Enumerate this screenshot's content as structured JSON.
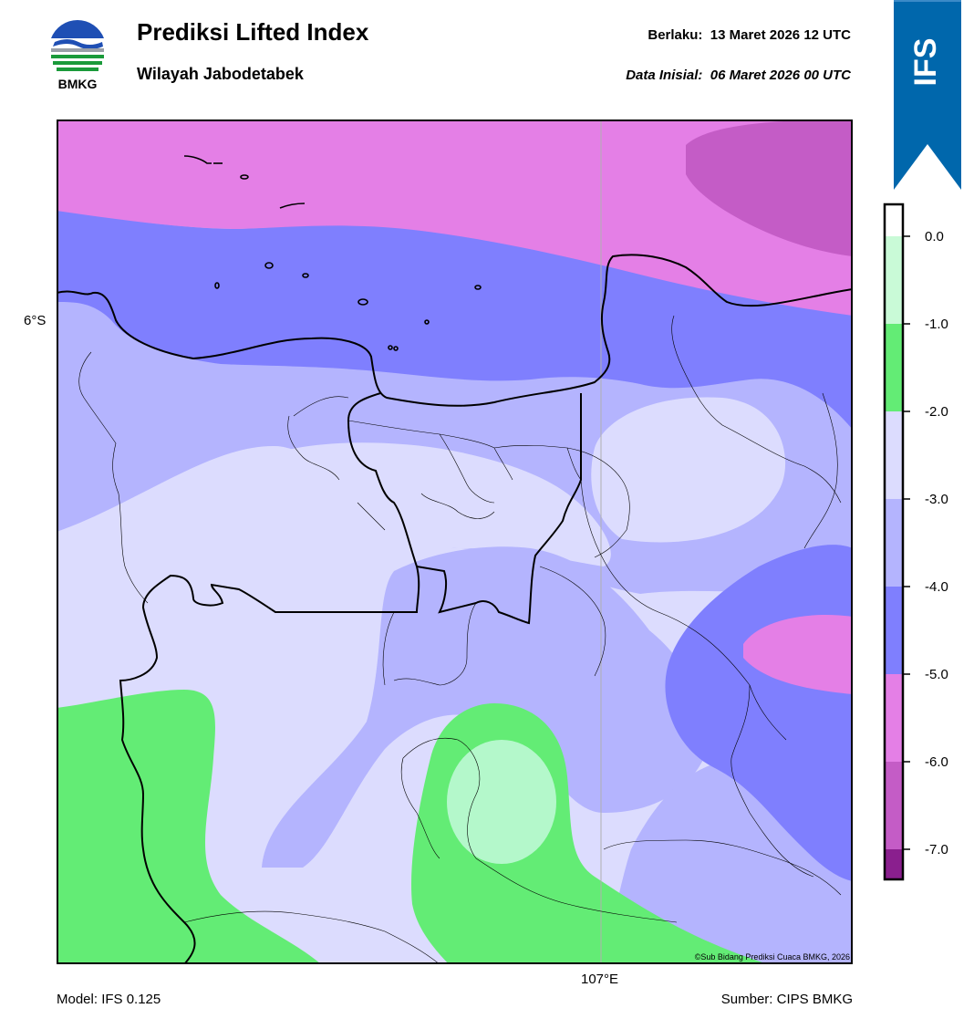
{
  "header": {
    "agency_logo_text": "BMKG",
    "title": "Prediksi Lifted Index",
    "subtitle": "Wilayah Jabodetabek",
    "valid_label": "Berlaku:",
    "valid_time": "13 Maret 2026 12 UTC",
    "init_label": "Data Inisial:",
    "init_time": "06 Maret 2026 00 UTC",
    "model_badge": "IFS"
  },
  "map": {
    "lat_label": "6°S",
    "lon_label": "107°E",
    "copyright": "©Sub Bidang Prediksi Cuaca BMKG, 2026"
  },
  "footer": {
    "model": "Model: IFS 0.125",
    "source": "Sumber: CIPS BMKG"
  },
  "colorbar": {
    "levels": [
      {
        "label": "0.0"
      },
      {
        "label": "-1.0"
      },
      {
        "label": "-2.0"
      },
      {
        "label": "-3.0"
      },
      {
        "label": "-4.0"
      },
      {
        "label": "-5.0"
      },
      {
        "label": "-6.0"
      },
      {
        "label": "-7.0"
      }
    ],
    "colors": [
      "#c9fad7",
      "#63ec75",
      "#dcdcfe",
      "#b4b4fe",
      "#7f7ffe",
      "#e47fe6",
      "#c45cc6",
      "#8a1f8e"
    ]
  },
  "colors": {
    "badge_blue": "#0067ac",
    "green": "#63ec75",
    "light_green": "#b4f8cb",
    "lavender_light": "#dcdcfe",
    "lavender": "#b4b4fe",
    "blue": "#7f7ffe",
    "pink": "#e47fe6",
    "magenta": "#c45cc6"
  }
}
